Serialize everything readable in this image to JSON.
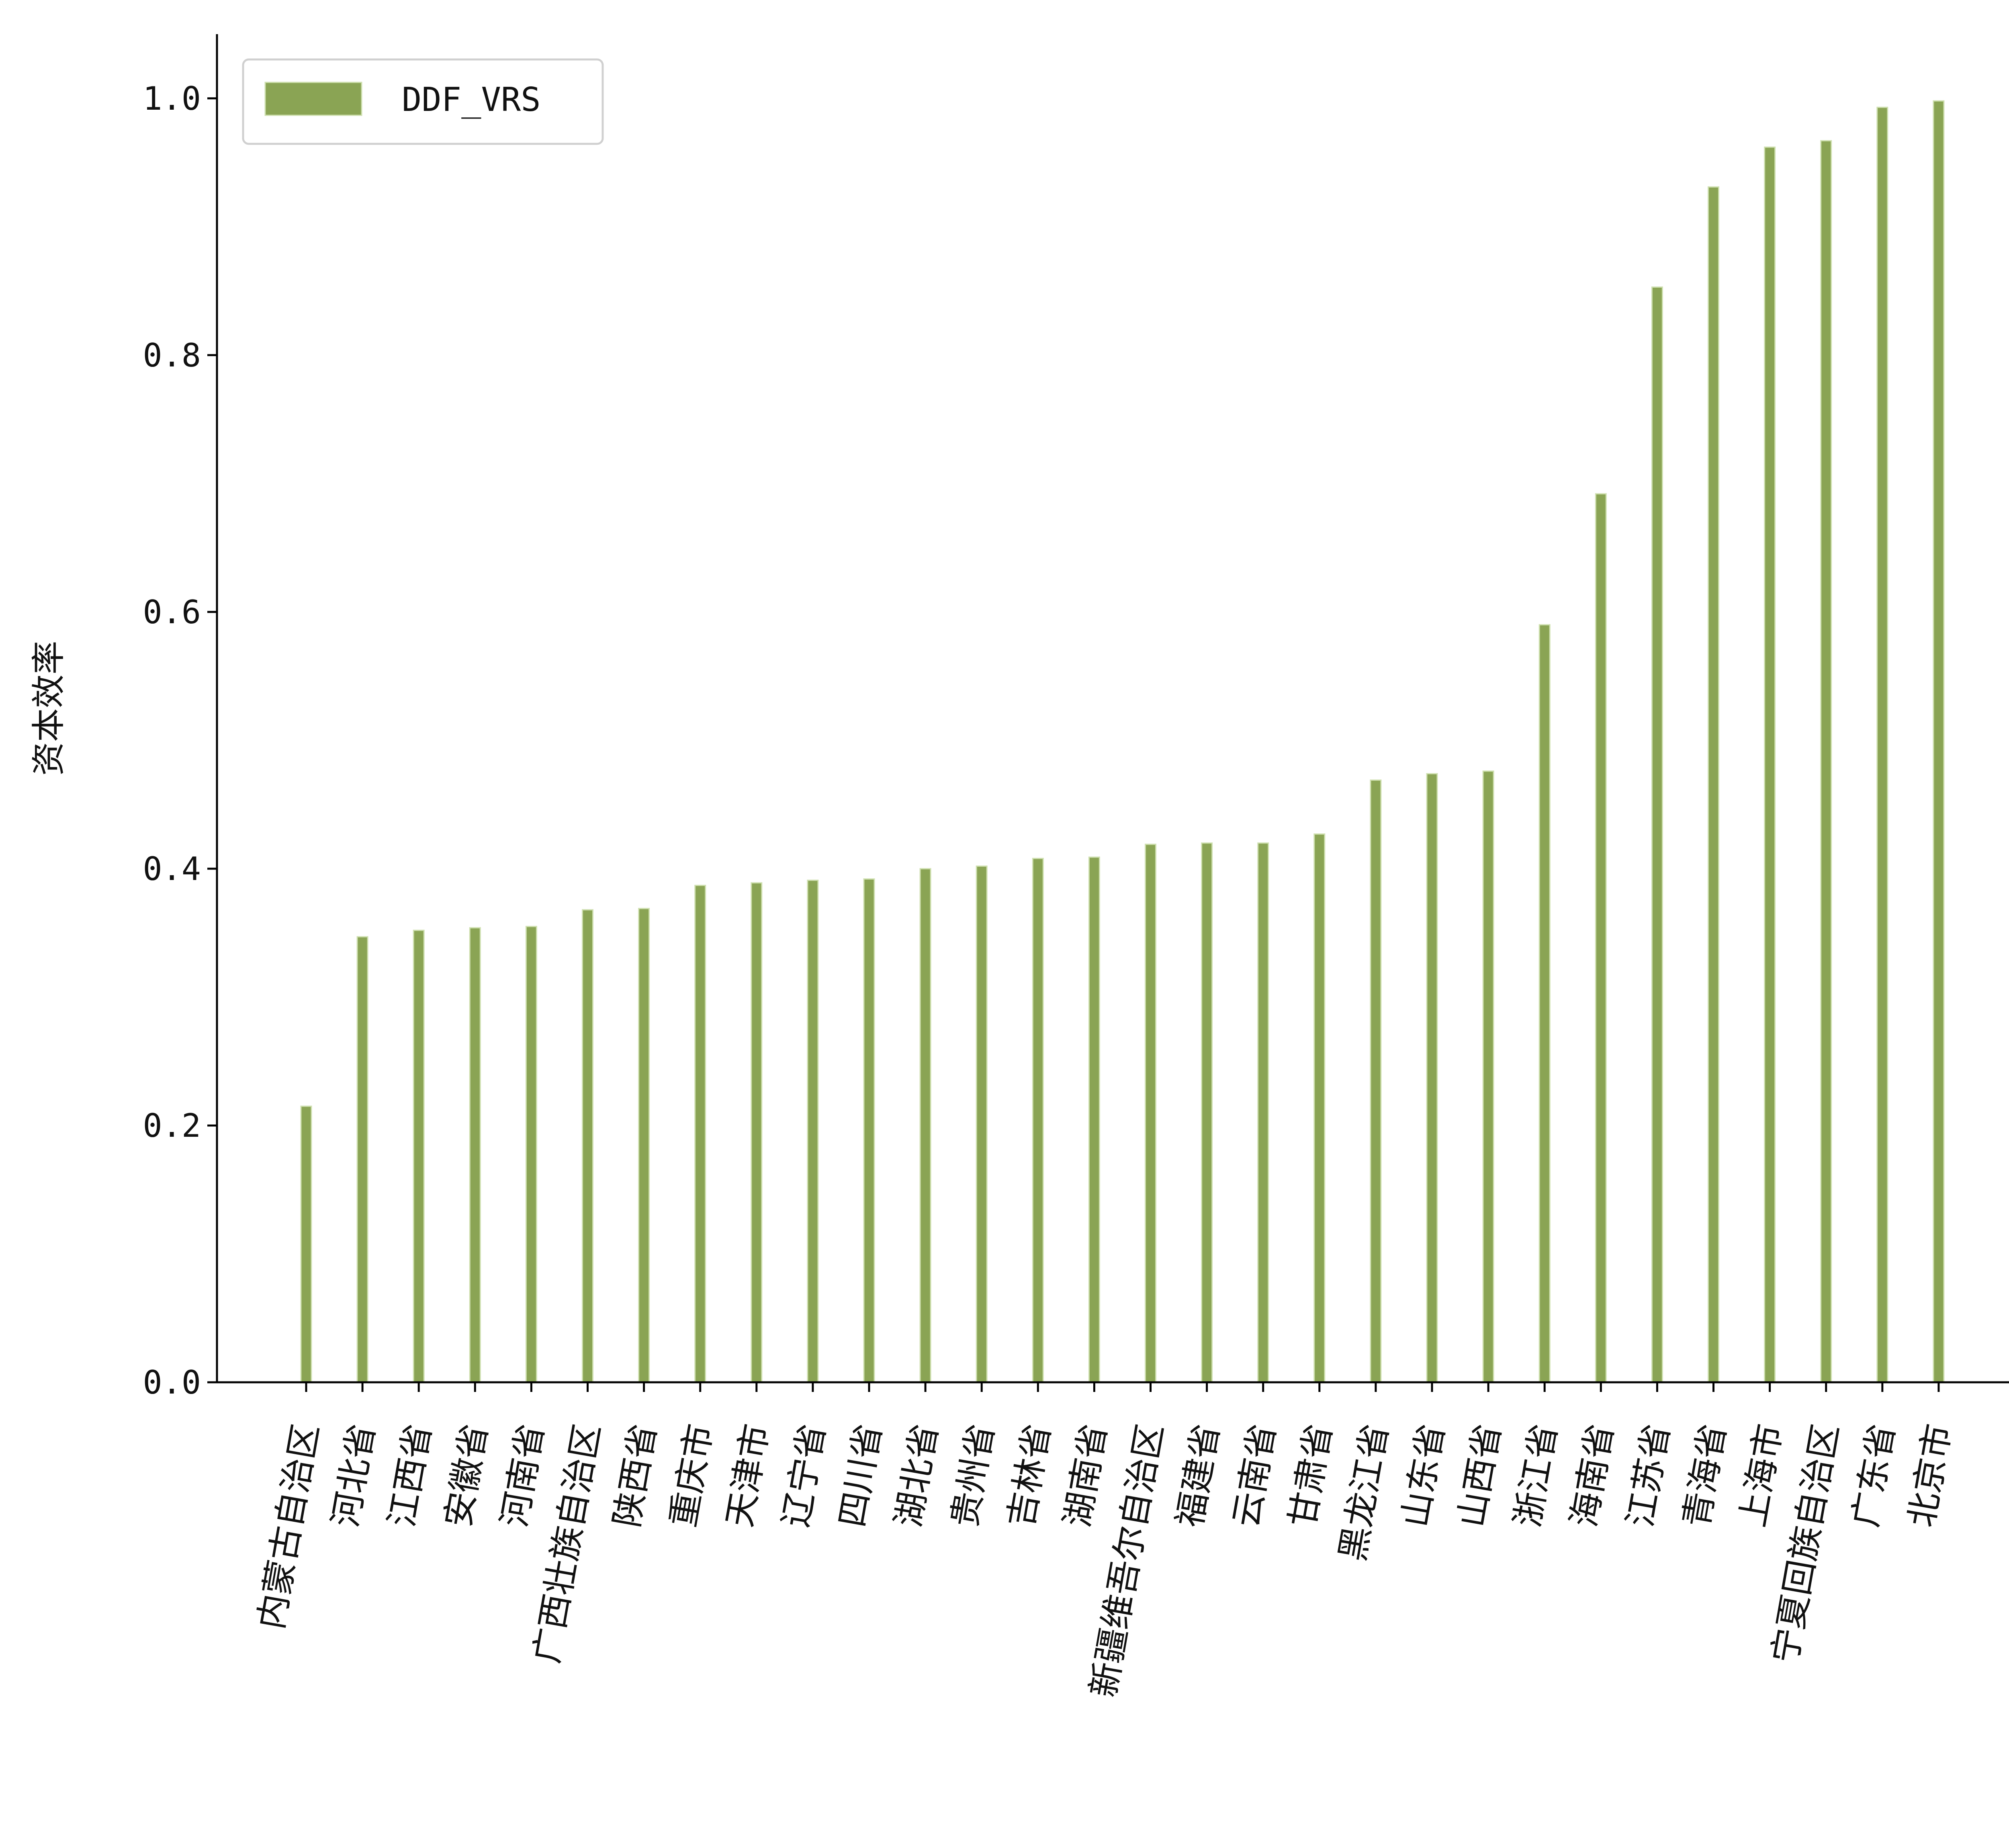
{
  "chart_data": {
    "type": "bar",
    "ylabel": "资本效率",
    "xlabel": "",
    "ylim": [
      0,
      1.05
    ],
    "yticks": [
      "0.0",
      "0.2",
      "0.4",
      "0.6",
      "0.8",
      "1.0"
    ],
    "grid": false,
    "legend_position": "top-left",
    "categories": [
      "内蒙古自治区",
      "河北省",
      "江西省",
      "安徽省",
      "河南省",
      "广西壮族自治区",
      "陕西省",
      "重庆市",
      "天津市",
      "辽宁省",
      "四川省",
      "湖北省",
      "贵州省",
      "吉林省",
      "湖南省",
      "新疆维吾尔自治区",
      "福建省",
      "云南省",
      "甘肃省",
      "黑龙江省",
      "山东省",
      "山西省",
      "浙江省",
      "海南省",
      "江苏省",
      "青海省",
      "上海市",
      "宁夏回族自治区",
      "广东省",
      "北京市"
    ],
    "series": [
      {
        "name": "DDF_VRS",
        "color": "#8aa454",
        "values": [
          0.215,
          0.347,
          0.352,
          0.354,
          0.355,
          0.368,
          0.369,
          0.387,
          0.389,
          0.391,
          0.392,
          0.4,
          0.402,
          0.408,
          0.409,
          0.419,
          0.42,
          0.42,
          0.427,
          0.469,
          0.474,
          0.476,
          0.59,
          0.692,
          0.853,
          0.931,
          0.962,
          0.967,
          0.993,
          0.998
        ]
      }
    ]
  }
}
